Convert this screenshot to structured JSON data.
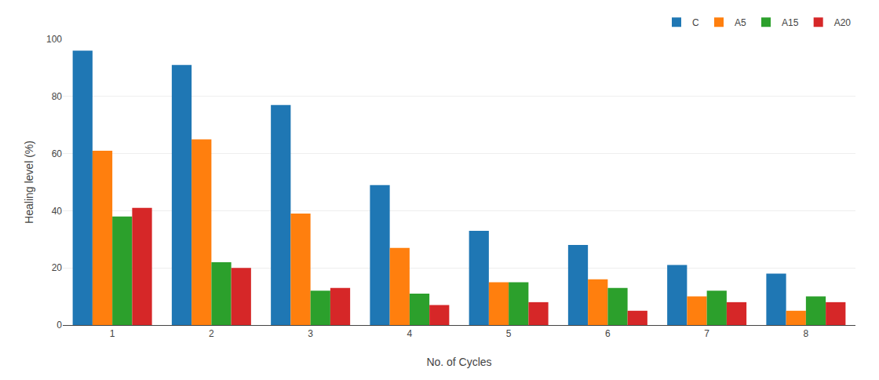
{
  "chart_data": {
    "type": "bar",
    "xlabel": "No. of Cycles",
    "ylabel": "Healing level (%)",
    "categories": [
      1,
      2,
      3,
      4,
      5,
      6,
      7,
      8
    ],
    "series": [
      {
        "name": "C",
        "values": [
          96,
          91,
          77,
          49,
          33,
          28,
          21,
          18
        ]
      },
      {
        "name": "A5",
        "values": [
          61,
          65,
          39,
          27,
          15,
          16,
          10,
          5
        ]
      },
      {
        "name": "A15",
        "values": [
          38,
          22,
          12,
          11,
          15,
          13,
          12,
          10
        ]
      },
      {
        "name": "A20",
        "values": [
          41,
          20,
          13,
          7,
          8,
          5,
          8,
          8
        ]
      }
    ],
    "ylim": [
      0,
      100
    ],
    "yticks": [
      0,
      20,
      40,
      60,
      80,
      100
    ],
    "grid": true,
    "legend": "upper right"
  }
}
